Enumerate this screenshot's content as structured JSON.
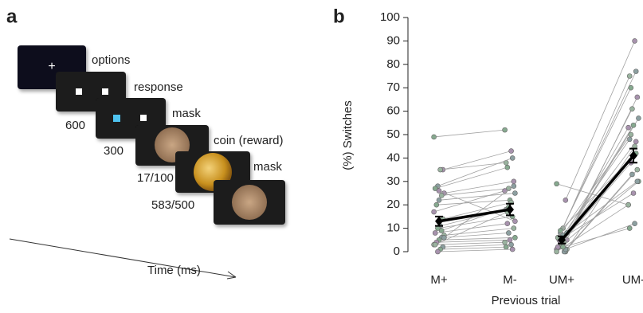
{
  "panel_a": {
    "label": "a",
    "screens": [
      "options",
      "response",
      "mask",
      "coin (reward)",
      "mask"
    ],
    "timings": [
      "600",
      "300",
      "17/100",
      "583/500"
    ],
    "axis_label": "Time (ms)"
  },
  "chart_data": {
    "type": "paired-dot",
    "panel_label": "b",
    "ylabel": "(%) Switches",
    "xlabel": "Previous trial",
    "categories": [
      "M+",
      "M-",
      "UM+",
      "UM-"
    ],
    "ylim": [
      0,
      100
    ],
    "yticks": [
      0,
      10,
      20,
      30,
      40,
      50,
      60,
      70,
      80,
      90,
      100
    ],
    "groups": [
      {
        "from": 0,
        "to": 1,
        "pairs": [
          [
            49,
            52
          ],
          [
            35,
            43
          ],
          [
            35,
            38
          ],
          [
            28,
            40
          ],
          [
            27,
            36
          ],
          [
            25,
            30
          ],
          [
            24,
            27
          ],
          [
            22,
            25
          ],
          [
            20,
            22
          ],
          [
            17,
            26
          ],
          [
            14,
            21
          ],
          [
            11,
            18
          ],
          [
            10,
            15
          ],
          [
            8,
            12
          ],
          [
            7,
            10
          ],
          [
            6,
            8
          ],
          [
            5,
            6
          ],
          [
            4,
            5
          ],
          [
            3,
            4
          ],
          [
            2,
            3
          ],
          [
            1,
            2
          ],
          [
            0,
            1
          ],
          [
            3,
            17
          ],
          [
            6,
            28
          ],
          [
            9,
            19
          ],
          [
            26,
            13
          ]
        ]
      },
      {
        "from": 2,
        "to": 3,
        "pairs": [
          [
            29,
            20
          ],
          [
            22,
            90
          ],
          [
            10,
            75
          ],
          [
            8,
            77
          ],
          [
            6,
            70
          ],
          [
            5,
            66
          ],
          [
            4,
            61
          ],
          [
            3,
            57
          ],
          [
            2,
            54
          ],
          [
            1,
            53
          ],
          [
            0,
            45
          ],
          [
            7,
            48
          ],
          [
            9,
            42
          ],
          [
            2,
            38
          ],
          [
            1,
            35
          ],
          [
            0,
            33
          ],
          [
            3,
            30
          ],
          [
            5,
            25
          ],
          [
            0,
            20
          ],
          [
            1,
            12
          ],
          [
            2,
            10
          ],
          [
            4,
            47
          ],
          [
            6,
            50
          ],
          [
            8,
            30
          ]
        ]
      }
    ],
    "means": [
      13,
      18,
      5,
      41
    ],
    "errors": [
      2,
      2.5,
      1.5,
      3
    ],
    "dot_colors": [
      "#86a98f",
      "#a792ad",
      "#9ab39f",
      "#8c9fa0"
    ],
    "pair_line_color": "#a0a0a0",
    "mean_color": "#000000"
  }
}
